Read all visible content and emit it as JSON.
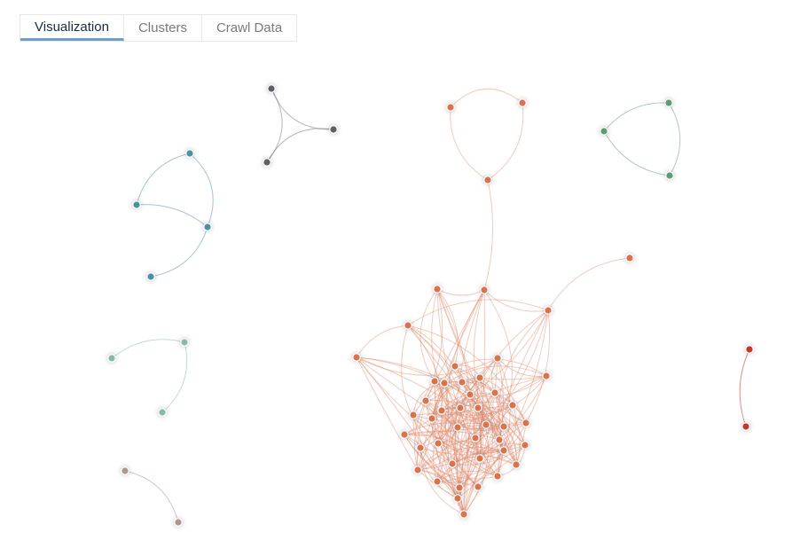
{
  "tabs": [
    "Visualization",
    "Clusters",
    "Crawl Data"
  ]
}
